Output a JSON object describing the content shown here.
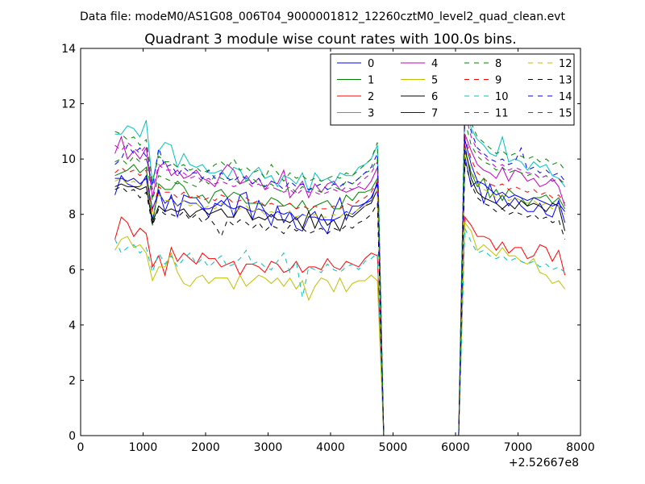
{
  "figure": {
    "suptitle": "Data file: modeM0/AS1G08_006T04_9000001812_12260cztM0_level2_quad_clean.evt"
  },
  "chart_data": {
    "type": "line",
    "title": "Quadrant 3 module wise count rates with 100.0s bins.",
    "xlabel": "",
    "ylabel": "",
    "x_offset_label": "+2.52667e8",
    "xlim": [
      0,
      8000
    ],
    "ylim": [
      0,
      14
    ],
    "xticks": [
      0,
      1000,
      2000,
      3000,
      4000,
      5000,
      6000,
      7000,
      8000
    ],
    "yticks": [
      0,
      2,
      4,
      6,
      8,
      10,
      12,
      14
    ],
    "grid": false,
    "legend_position": "upper-right",
    "legend_columns": 4,
    "segments": [
      {
        "x_start": 550,
        "x_end": 4750,
        "step": 100
      },
      {
        "x_start": 4850,
        "x_end": 6050,
        "step": 100
      },
      {
        "x_start": 6150,
        "x_end": 7750,
        "step": 100
      }
    ],
    "series": [
      {
        "name": "0",
        "color": "#0000ff",
        "dash": "solid",
        "seg1": [
          8.7,
          9.4,
          9.1,
          9.0,
          9.0,
          9.4,
          7.8,
          8.9,
          8.1,
          8.7,
          7.9,
          8.7,
          8.6,
          8.6,
          8.3,
          7.9,
          8.4,
          8.3,
          8.6,
          7.9,
          8.7,
          8.8,
          7.8,
          8.5,
          8.1,
          7.6,
          8.3,
          7.7,
          8.1,
          7.5,
          7.4,
          7.9,
          8.1,
          7.6,
          7.3,
          8.1,
          8.6,
          7.8,
          8.3,
          8.3,
          8.4,
          8.5,
          9.2
        ],
        "seg3": [
          10.1,
          9.0,
          9.2,
          8.4,
          9.1,
          8.4,
          8.7,
          8.3,
          8.6,
          8.3,
          8.1,
          8.1,
          8.4,
          8.0,
          7.9,
          8.5,
          7.7
        ]
      },
      {
        "name": "1",
        "color": "#008000",
        "dash": "solid",
        "seg1": [
          9.4,
          9.5,
          9.6,
          9.8,
          9.5,
          9.7,
          7.6,
          9.1,
          8.9,
          8.9,
          9.2,
          9.0,
          8.6,
          8.6,
          8.7,
          8.4,
          8.8,
          8.9,
          8.6,
          8.8,
          8.7,
          8.4,
          8.4,
          8.4,
          8.3,
          8.6,
          8.5,
          8.3,
          8.4,
          8.2,
          8.5,
          8.1,
          8.3,
          8.4,
          8.5,
          8.2,
          8.2,
          8.7,
          8.5,
          8.8,
          8.8,
          8.9,
          9.3
        ],
        "seg3": [
          10.3,
          9.5,
          9.0,
          9.3,
          8.6,
          8.9,
          8.5,
          8.9,
          8.7,
          8.6,
          8.3,
          8.6,
          8.6,
          8.7,
          8.4,
          8.6,
          8.2
        ]
      },
      {
        "name": "2",
        "color": "#ff0000",
        "dash": "solid",
        "seg1": [
          7.1,
          7.9,
          7.7,
          7.2,
          7.5,
          7.3,
          6.1,
          6.5,
          5.8,
          6.8,
          6.3,
          6.6,
          6.4,
          6.2,
          6.6,
          6.4,
          6.4,
          6.1,
          6.2,
          6.3,
          5.8,
          6.2,
          6.2,
          6.1,
          5.9,
          6.3,
          6.2,
          5.9,
          6.0,
          6.3,
          5.9,
          6.1,
          6.1,
          6.0,
          6.4,
          6.1,
          6.0,
          6.3,
          6.2,
          6.1,
          6.4,
          6.6,
          6.5
        ],
        "seg3": [
          7.9,
          7.6,
          7.2,
          7.2,
          7.1,
          6.7,
          7.0,
          6.6,
          6.8,
          6.8,
          6.4,
          6.5,
          6.9,
          6.8,
          6.3,
          6.7,
          5.8
        ]
      },
      {
        "name": "3",
        "color": "#00bfbf",
        "dash": "solid",
        "seg1": [
          10.9,
          10.9,
          11.2,
          11.1,
          10.8,
          11.4,
          9.1,
          10.3,
          10.6,
          10.5,
          9.7,
          10.2,
          9.8,
          9.7,
          9.8,
          9.5,
          9.5,
          9.6,
          9.3,
          9.7,
          9.6,
          9.2,
          9.5,
          9.7,
          9.3,
          9.4,
          9.0,
          9.4,
          9.3,
          9.1,
          9.5,
          8.8,
          9.5,
          9.2,
          9.3,
          9.1,
          9.5,
          9.4,
          9.4,
          9.7,
          9.8,
          10.0,
          10.5
        ],
        "seg3": [
          12.2,
          11.1,
          10.7,
          10.5,
          10.2,
          10.1,
          10.8,
          9.9,
          10.0,
          9.9,
          9.6,
          9.9,
          9.7,
          9.8,
          9.4,
          9.3,
          9.0
        ]
      },
      {
        "name": "4",
        "color": "#bf00bf",
        "dash": "solid",
        "seg1": [
          10.2,
          10.8,
          10.0,
          10.3,
          10.0,
          10.4,
          8.6,
          9.7,
          9.9,
          9.4,
          9.6,
          9.3,
          9.4,
          9.6,
          9.3,
          9.2,
          9.0,
          9.5,
          9.8,
          9.6,
          9.1,
          9.4,
          9.1,
          9.3,
          8.9,
          9.2,
          9.1,
          9.6,
          8.6,
          8.9,
          9.2,
          8.6,
          9.1,
          8.8,
          9.1,
          9.2,
          8.9,
          8.8,
          8.9,
          9.0,
          8.9,
          9.2,
          9.7
        ],
        "seg3": [
          10.9,
          10.3,
          9.8,
          9.6,
          9.5,
          9.3,
          9.7,
          9.2,
          9.6,
          9.5,
          9.2,
          9.3,
          9.0,
          9.1,
          9.3,
          9.0,
          8.3
        ]
      },
      {
        "name": "5",
        "color": "#bfbf00",
        "dash": "solid",
        "seg1": [
          6.7,
          7.1,
          7.2,
          6.8,
          6.9,
          6.6,
          5.6,
          6.1,
          6.1,
          6.6,
          5.9,
          5.5,
          5.4,
          5.7,
          5.8,
          5.5,
          5.7,
          5.7,
          5.7,
          5.3,
          5.8,
          5.4,
          5.6,
          5.8,
          5.7,
          5.5,
          5.7,
          5.4,
          5.7,
          5.3,
          5.6,
          4.9,
          5.4,
          5.7,
          5.6,
          5.2,
          5.7,
          5.2,
          5.5,
          5.6,
          5.6,
          5.8,
          5.6
        ],
        "seg3": [
          7.7,
          7.4,
          6.7,
          6.9,
          6.7,
          6.5,
          6.8,
          6.5,
          6.5,
          6.3,
          6.2,
          6.4,
          5.9,
          5.8,
          5.5,
          5.6,
          5.3
        ]
      },
      {
        "name": "6",
        "color": "#000000",
        "dash": "solid",
        "seg1": [
          9.0,
          9.1,
          9.0,
          9.0,
          8.9,
          9.0,
          7.7,
          8.3,
          8.1,
          8.2,
          8.1,
          8.2,
          7.9,
          8.1,
          8.2,
          8.0,
          8.1,
          8.2,
          7.9,
          7.9,
          8.3,
          8.2,
          7.8,
          7.9,
          7.8,
          8.0,
          7.8,
          7.8,
          7.7,
          7.9,
          7.5,
          8.1,
          7.5,
          8.0,
          7.6,
          7.8,
          7.4,
          8.0,
          7.9,
          8.1,
          8.3,
          8.4,
          8.9
        ],
        "seg3": [
          10.5,
          9.3,
          8.8,
          8.6,
          8.5,
          8.4,
          8.2,
          8.4,
          8.2,
          8.5,
          8.3,
          8.4,
          8.3,
          8.1,
          8.4,
          8.3,
          7.4
        ]
      },
      {
        "name": "7",
        "color": "#0000ff",
        "dash": "solid",
        "seg1": [
          9.3,
          9.3,
          9.2,
          9.3,
          9.1,
          9.3,
          8.2,
          8.8,
          8.4,
          8.6,
          8.3,
          8.5,
          8.4,
          8.4,
          8.2,
          8.2,
          8.3,
          8.5,
          8.3,
          8.2,
          8.3,
          8.2,
          8.1,
          8.2,
          8.1,
          7.9,
          8.1,
          8.0,
          8.1,
          7.8,
          8.0,
          7.9,
          7.9,
          7.8,
          7.8,
          7.8,
          7.9,
          8.1,
          8.0,
          8.2,
          8.4,
          8.6,
          9.1
        ],
        "seg3": [
          10.7,
          9.8,
          9.2,
          9.1,
          8.9,
          8.7,
          8.8,
          8.6,
          8.7,
          8.6,
          8.5,
          8.6,
          8.5,
          8.4,
          8.3,
          8.4,
          8.1
        ]
      },
      {
        "name": "8",
        "color": "#008000",
        "dash": "dashed",
        "seg1": [
          9.9,
          10.0,
          9.8,
          10.1,
          9.9,
          10.0,
          8.5,
          9.4,
          9.3,
          9.2,
          9.1,
          9.2,
          9.1,
          9.0,
          9.3,
          9.1,
          9.4,
          9.3,
          9.2,
          9.3,
          9.1,
          9.2,
          9.3,
          9.1,
          9.0,
          9.1,
          8.9,
          8.8,
          9.0,
          8.8,
          9.0,
          8.9,
          8.9,
          8.8,
          8.9,
          9.0,
          8.9,
          9.2,
          9.1,
          9.3,
          9.5,
          9.6,
          10.0
        ],
        "seg3": [
          11.4,
          10.5,
          10.1,
          9.9,
          9.8,
          9.6,
          9.7,
          9.5,
          9.6,
          9.5,
          9.4,
          9.5,
          9.3,
          9.4,
          9.2,
          9.3,
          9.1
        ]
      },
      {
        "name": "9",
        "color": "#ff0000",
        "dash": "dashed",
        "seg1": [
          9.5,
          9.7,
          9.5,
          9.6,
          9.4,
          9.6,
          8.1,
          9.0,
          8.8,
          8.8,
          8.6,
          8.8,
          8.6,
          8.7,
          8.5,
          8.6,
          8.5,
          8.7,
          8.6,
          8.4,
          8.5,
          8.6,
          8.4,
          8.5,
          8.3,
          8.4,
          8.3,
          8.3,
          8.4,
          8.2,
          8.3,
          8.2,
          8.3,
          8.2,
          8.2,
          8.3,
          8.2,
          8.4,
          8.3,
          8.5,
          8.6,
          8.8,
          9.2
        ],
        "seg3": [
          10.8,
          10.0,
          9.5,
          9.3,
          9.1,
          9.0,
          9.1,
          8.9,
          9.0,
          8.9,
          8.8,
          8.9,
          8.7,
          8.8,
          8.6,
          8.7,
          8.4
        ]
      },
      {
        "name": "10",
        "color": "#00bfbf",
        "dash": "dashed",
        "seg1": [
          7.1,
          6.6,
          6.8,
          6.9,
          6.6,
          6.8,
          5.9,
          6.6,
          6.2,
          6.5,
          6.1,
          6.4,
          6.6,
          6.2,
          6.4,
          6.1,
          6.3,
          6.5,
          6.1,
          6.2,
          6.4,
          6.7,
          6.2,
          6.3,
          6.1,
          6.0,
          6.3,
          6.6,
          5.9,
          6.3,
          5.0,
          6.1,
          6.0,
          5.9,
          6.2,
          6.0,
          5.9,
          6.1,
          6.2,
          6.0,
          6.3,
          6.4,
          6.6
        ],
        "seg3": [
          7.5,
          7.0,
          6.6,
          6.7,
          6.5,
          6.4,
          6.5,
          6.3,
          6.4,
          6.3,
          6.2,
          6.3,
          6.1,
          6.2,
          6.0,
          6.1,
          5.9
        ]
      },
      {
        "name": "11",
        "color": "#bf00bf",
        "dash": "dashed",
        "seg1": [
          10.5,
          10.3,
          10.6,
          10.4,
          10.2,
          10.5,
          8.9,
          9.8,
          9.6,
          9.6,
          9.4,
          9.5,
          9.3,
          9.4,
          9.2,
          9.3,
          9.1,
          9.2,
          9.1,
          9.0,
          9.1,
          9.2,
          9.0,
          9.1,
          8.9,
          9.0,
          8.9,
          8.8,
          8.9,
          8.7,
          8.9,
          8.8,
          8.8,
          8.7,
          8.8,
          8.9,
          8.8,
          9.0,
          8.9,
          9.1,
          9.3,
          9.5,
          9.9
        ],
        "seg3": [
          11.7,
          10.8,
          10.3,
          10.1,
          9.9,
          9.7,
          9.8,
          9.6,
          9.7,
          9.6,
          9.5,
          9.5,
          9.3,
          9.4,
          9.2,
          9.3,
          9.0
        ]
      },
      {
        "name": "12",
        "color": "#bfbf00",
        "dash": "dashed",
        "seg1": [
          9.2,
          9.3,
          9.1,
          9.2,
          9.0,
          9.2,
          7.9,
          8.7,
          8.5,
          8.5,
          8.3,
          8.5,
          8.3,
          8.4,
          8.2,
          8.3,
          8.2,
          8.4,
          8.3,
          8.1,
          8.2,
          8.3,
          8.1,
          8.2,
          8.0,
          8.1,
          8.0,
          8.0,
          8.1,
          7.9,
          8.0,
          7.9,
          8.0,
          7.9,
          7.9,
          8.0,
          7.9,
          8.1,
          8.0,
          8.2,
          8.3,
          8.5,
          8.9
        ],
        "seg3": [
          10.4,
          9.6,
          9.1,
          8.9,
          8.8,
          8.6,
          8.7,
          8.5,
          8.6,
          8.5,
          8.4,
          8.5,
          8.3,
          8.4,
          8.2,
          8.3,
          8.0
        ]
      },
      {
        "name": "13",
        "color": "#000000",
        "dash": "dashed",
        "seg1": [
          8.9,
          9.0,
          8.8,
          8.9,
          8.6,
          8.8,
          7.6,
          8.2,
          8.0,
          8.0,
          7.9,
          8.1,
          7.8,
          8.0,
          7.7,
          7.9,
          7.6,
          7.2,
          7.8,
          7.6,
          7.8,
          7.7,
          7.5,
          7.7,
          7.4,
          7.6,
          7.5,
          7.3,
          7.6,
          7.4,
          7.5,
          7.3,
          7.4,
          7.5,
          7.3,
          7.5,
          7.4,
          7.6,
          7.5,
          7.7,
          7.8,
          8.0,
          8.4
        ],
        "seg3": [
          9.9,
          9.1,
          8.6,
          8.4,
          8.3,
          8.1,
          8.2,
          8.0,
          8.1,
          8.0,
          7.9,
          8.0,
          7.8,
          7.9,
          7.7,
          7.8,
          7.1
        ]
      },
      {
        "name": "14",
        "color": "#0000ff",
        "dash": "dashed",
        "seg1": [
          9.8,
          10.0,
          10.5,
          10.2,
          10.4,
          10.1,
          9.0,
          10.4,
          9.7,
          9.8,
          9.4,
          9.7,
          9.5,
          9.5,
          9.3,
          9.6,
          9.3,
          9.5,
          9.3,
          9.2,
          9.4,
          9.3,
          9.1,
          9.3,
          9.0,
          9.2,
          9.1,
          8.9,
          9.2,
          9.0,
          9.1,
          8.9,
          9.0,
          9.1,
          8.9,
          9.1,
          9.0,
          9.2,
          9.1,
          9.3,
          9.5,
          9.7,
          10.2
        ],
        "seg3": [
          11.9,
          11.0,
          10.4,
          10.2,
          10.0,
          9.9,
          10.0,
          9.8,
          9.9,
          10.4,
          9.6,
          9.7,
          9.5,
          9.6,
          9.4,
          9.5,
          9.2
        ]
      },
      {
        "name": "15",
        "color": "#008000",
        "dash": "dashed",
        "seg1": [
          11.0,
          10.9,
          10.7,
          10.8,
          10.5,
          10.7,
          9.2,
          10.1,
          9.9,
          9.9,
          9.7,
          9.8,
          9.6,
          9.7,
          9.5,
          9.6,
          9.8,
          9.9,
          9.7,
          10.0,
          9.6,
          9.7,
          9.5,
          9.6,
          9.3,
          9.8,
          9.5,
          9.2,
          9.5,
          9.3,
          9.4,
          9.2,
          9.3,
          9.2,
          9.3,
          9.4,
          9.3,
          9.5,
          9.4,
          9.6,
          9.8,
          10.0,
          10.6
        ],
        "seg3": [
          12.4,
          11.3,
          10.8,
          10.6,
          10.4,
          10.2,
          10.3,
          10.1,
          10.2,
          10.1,
          10.0,
          10.1,
          9.9,
          10.0,
          9.8,
          9.9,
          9.6
        ]
      }
    ]
  }
}
